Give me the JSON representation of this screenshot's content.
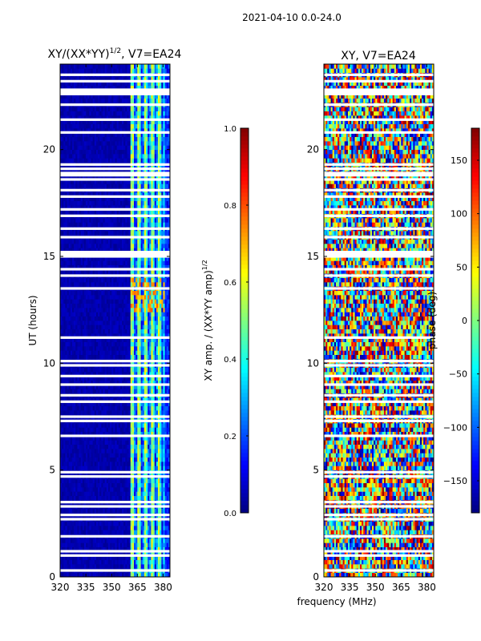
{
  "suptitle": "2021-04-10 0.0-24.0",
  "chart_data": [
    {
      "type": "heatmap",
      "title": "XY/(XX*YY)$^{1/2}$, V7=EA24",
      "title_main": "XY/(XX*YY)",
      "title_sup": "1/2",
      "title_tail": ", V7=EA24",
      "xlabel": "",
      "ylabel": "UT (hours)",
      "xlim": [
        320,
        384
      ],
      "ylim": [
        0,
        24
      ],
      "xticks": [
        320,
        335,
        350,
        365,
        380
      ],
      "yticks": [
        0,
        5,
        10,
        15,
        20
      ],
      "colormap": "jet",
      "colorbar": {
        "label_main": "XY amp. / (XX*YY amp)",
        "label_sup": "1/2",
        "range": [
          0.0,
          1.0
        ],
        "ticks": [
          0.0,
          0.2,
          0.4,
          0.6,
          0.8,
          1.0
        ],
        "tick_labels": [
          "0.0",
          "0.2",
          "0.4",
          "0.6",
          "0.8",
          "1.0"
        ]
      },
      "description": "Dark blue (near 0) below 361 MHz; blue-cyan-green values (~0.2-0.6) between 361 and 381 MHz; white gaps are flagged times"
    },
    {
      "type": "heatmap",
      "title": "XY, V7=EA24",
      "xlabel": "frequency (MHz)",
      "ylabel": "",
      "xlim": [
        320,
        384
      ],
      "ylim": [
        0,
        24
      ],
      "xticks": [
        320,
        335,
        350,
        365,
        380
      ],
      "yticks": [
        0,
        5,
        10,
        15,
        20
      ],
      "colormap": "jet",
      "colorbar": {
        "label": "phase (deg)",
        "range": [
          -180,
          180
        ],
        "ticks": [
          -150,
          -100,
          -50,
          0,
          50,
          100,
          150
        ],
        "tick_labels": [
          "−150",
          "−100",
          "−50",
          "0",
          "50",
          "100",
          "150"
        ]
      },
      "description": "Phase wrapped over -180..180 deg, noisy structure across all frequencies"
    }
  ],
  "flagged_hours": [
    0.3,
    1.0,
    1.2,
    1.9,
    2.7,
    2.9,
    3.3,
    3.5,
    4.7,
    4.9,
    6.6,
    7.3,
    7.5,
    8.2,
    8.5,
    9.0,
    9.4,
    9.9,
    10.1,
    11.2,
    13.5,
    14.1,
    14.4,
    15.0,
    15.1,
    15.2,
    15.9,
    16.3,
    16.9,
    17.2,
    17.8,
    18.1,
    18.6,
    18.8,
    18.9,
    19.1,
    19.3,
    20.8,
    21.4,
    22.1,
    22.6,
    22.7,
    22.8,
    23.2,
    23.5
  ]
}
